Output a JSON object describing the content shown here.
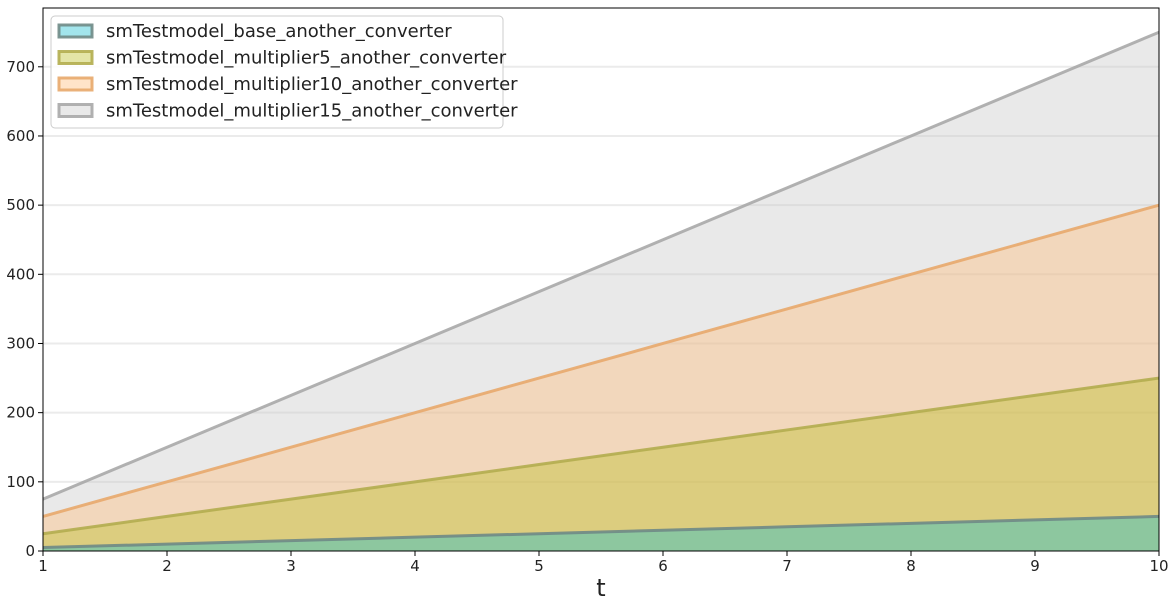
{
  "chart_data": {
    "type": "area",
    "title": "",
    "xlabel": "t",
    "ylabel": "",
    "x": [
      1,
      2,
      3,
      4,
      5,
      6,
      7,
      8,
      9,
      10
    ],
    "xlim": [
      1,
      10
    ],
    "ylim": [
      0,
      785
    ],
    "xticks": [
      "1",
      "2",
      "3",
      "4",
      "5",
      "6",
      "7",
      "8",
      "9",
      "10"
    ],
    "yticks": [
      "0",
      "100",
      "200",
      "300",
      "400",
      "500",
      "600",
      "700"
    ],
    "grid": "horizontal",
    "stacked": false,
    "legend_position": "top-left",
    "series": [
      {
        "name": "smTestmodel_multiplier15_another_converter",
        "values": [
          75,
          150,
          225,
          300,
          375,
          450,
          525,
          600,
          675,
          750
        ],
        "fill": "#c7c7c7",
        "line": "#a8a8a8"
      },
      {
        "name": "smTestmodel_multiplier10_another_converter",
        "values": [
          50,
          100,
          150,
          200,
          250,
          300,
          350,
          400,
          450,
          500
        ],
        "fill": "#ffbb78",
        "line": "#e8a86c"
      },
      {
        "name": "smTestmodel_multiplier5_another_converter",
        "values": [
          25,
          50,
          75,
          100,
          125,
          150,
          175,
          200,
          225,
          250
        ],
        "fill": "#bcbd22",
        "line": "#b3ad4f"
      },
      {
        "name": "smTestmodel_base_another_converter",
        "values": [
          5,
          10,
          15,
          20,
          25,
          30,
          35,
          40,
          45,
          50
        ],
        "fill": "#17becf",
        "line": "#6f8a86"
      }
    ],
    "legend_order": [
      3,
      2,
      1,
      0
    ]
  }
}
